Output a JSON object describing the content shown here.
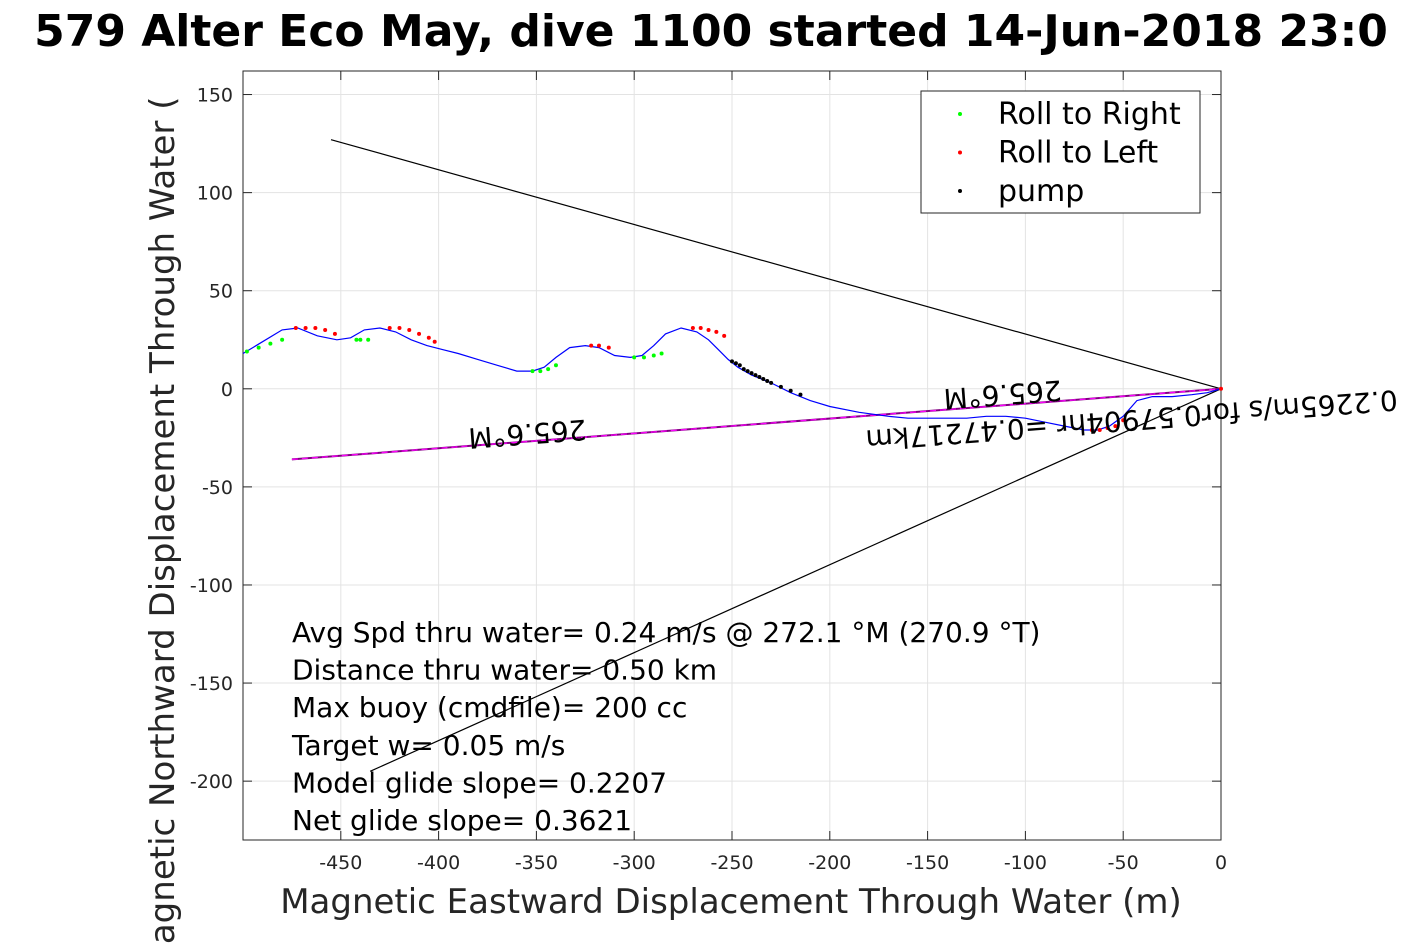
{
  "chart_data": {
    "type": "scatter",
    "title": "579 Alter Eco May, dive 1100 started 14-Jun-2018 23:0",
    "xlabel": "Magnetic Eastward Displacement Through Water (m)",
    "ylabel": "Magnetic Northward Displacement Through Water (",
    "xlim": [
      -500,
      0
    ],
    "ylim": [
      -230,
      162
    ],
    "xticks": [
      -450,
      -400,
      -350,
      -300,
      -250,
      -200,
      -150,
      -100,
      -50,
      0
    ],
    "yticks": [
      -200,
      -150,
      -100,
      -50,
      0,
      50,
      100,
      150
    ],
    "grid": true,
    "legend": {
      "placement": "top-right",
      "entries": [
        {
          "label": "Roll to Right",
          "color": "#00ff00"
        },
        {
          "label": "Roll to Left",
          "color": "#ff0000"
        },
        {
          "label": "pump",
          "color": "#000000"
        }
      ]
    },
    "colors": {
      "track": "#0000ff",
      "heading_line": "#800080",
      "heading_dash": "#ff00ff",
      "cone": "#000000"
    },
    "track": {
      "x": [
        -500,
        -490,
        -480,
        -472,
        -462,
        -452,
        -445,
        -438,
        -430,
        -422,
        -414,
        -406,
        -398,
        -390,
        -380,
        -370,
        -360,
        -352,
        -346,
        -340,
        -333,
        -325,
        -318,
        -310,
        -302,
        -296,
        -290,
        -284,
        -276,
        -268,
        -262,
        -257,
        -252,
        -247,
        -240,
        -230,
        -220,
        -210,
        -200,
        -185,
        -170,
        -160,
        -150,
        -140,
        -130,
        -120,
        -110,
        -100,
        -90,
        -80,
        -70,
        -63,
        -57,
        -50,
        -43,
        -35,
        -25,
        -15,
        -7,
        0
      ],
      "y": [
        18,
        24,
        30,
        31,
        27,
        25,
        26,
        30,
        31,
        29,
        25,
        22,
        20,
        18,
        15,
        12,
        9,
        9,
        11,
        16,
        21,
        22,
        21,
        17,
        16,
        17,
        22,
        28,
        31,
        29,
        25,
        20,
        15,
        11,
        7,
        3,
        -2,
        -6,
        -9,
        -12,
        -14,
        -15,
        -15,
        -15,
        -15,
        -14,
        -14,
        -15,
        -17,
        -19,
        -21,
        -21,
        -19,
        -14,
        -6,
        -4,
        -4,
        -3,
        -2,
        0
      ]
    },
    "points": {
      "roll_right": {
        "x": [
          -498,
          -492,
          -486,
          -480,
          -442,
          -440,
          -436,
          -352,
          -348,
          -344,
          -340,
          -300,
          -295,
          -290,
          -286
        ],
        "y": [
          19,
          21,
          23,
          25,
          25,
          25,
          25,
          9,
          9,
          10,
          12,
          16,
          16,
          17,
          18
        ]
      },
      "roll_left": {
        "x": [
          -473,
          -468,
          -463,
          -458,
          -453,
          -425,
          -420,
          -415,
          -410,
          -405,
          -402,
          -322,
          -318,
          -313,
          -270,
          -266,
          -262,
          -258,
          -254,
          -66,
          -62,
          -58,
          -54,
          -50,
          0
        ],
        "y": [
          31,
          31,
          31,
          30,
          28,
          31,
          31,
          30,
          28,
          26,
          24,
          22,
          22,
          21,
          31,
          31,
          30,
          29,
          27,
          -21,
          -21,
          -20,
          -19,
          -16,
          0
        ]
      },
      "pump": {
        "x": [
          -250,
          -248,
          -246,
          -244,
          -242,
          -240,
          -238,
          -236,
          -234,
          -232,
          -230,
          -225,
          -220,
          -215
        ],
        "y": [
          14,
          13,
          12,
          10,
          9,
          8,
          7,
          6,
          5,
          4,
          3,
          1,
          -1,
          -3
        ]
      }
    },
    "lines": {
      "cone_upper": {
        "x": [
          -455,
          0
        ],
        "y": [
          127,
          0
        ]
      },
      "cone_lower": {
        "x": [
          -435,
          0
        ],
        "y": [
          -195,
          0
        ]
      },
      "heading": {
        "x": [
          -475,
          0
        ],
        "y": [
          -36,
          0
        ]
      }
    },
    "annotations": [
      {
        "text": "265.6°M",
        "x": -112,
        "y": 2
      },
      {
        "text": "0.2265m/s for0.57904hr =0.47217km",
        "x": -46,
        "y": -11
      },
      {
        "text": "265.6°M",
        "x": -355,
        "y": -18
      }
    ],
    "stats": [
      "Avg Spd thru water=  0.24 m/s @ 272.1 °M (270.9 °T)",
      "Distance thru water=  0.50 km",
      "Max buoy (cmdfile)= 200 cc",
      "Target w= 0.05 m/s",
      "Model glide slope= 0.2207",
      "Net glide slope= 0.3621"
    ]
  }
}
